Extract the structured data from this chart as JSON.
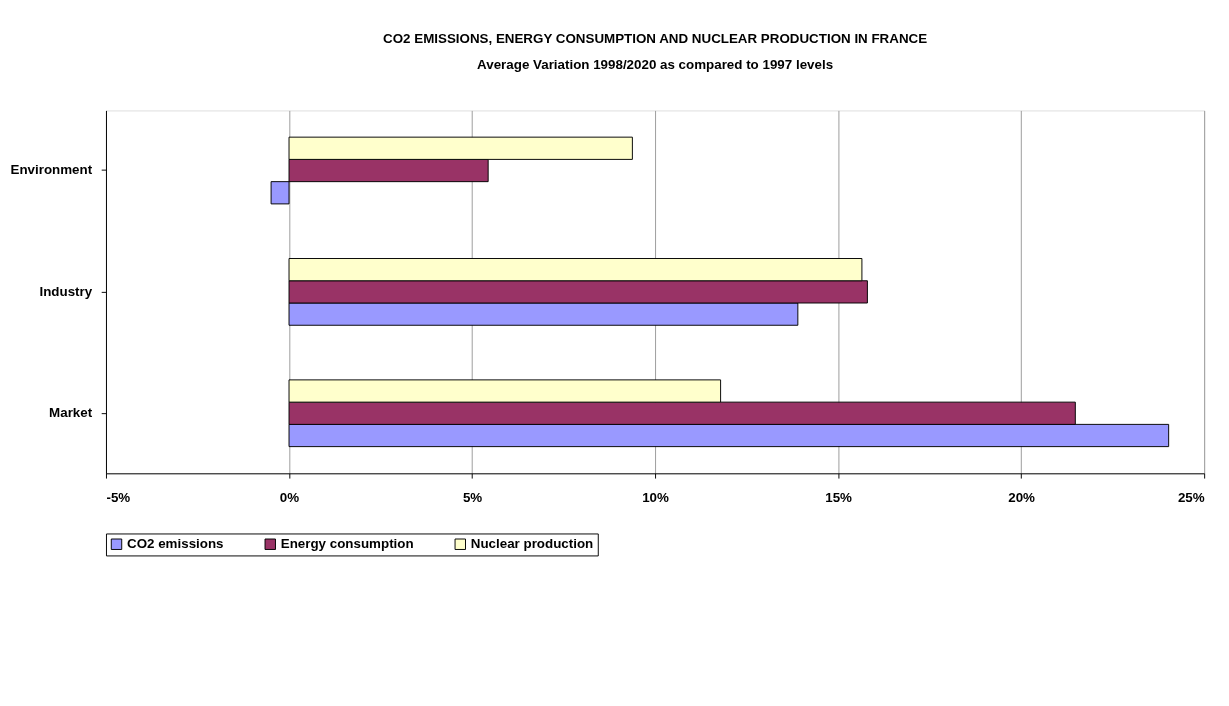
{
  "chart_data": {
    "type": "bar",
    "orientation": "horizontal",
    "title": "CO2 EMISSIONS, ENERGY CONSUMPTION AND NUCLEAR PRODUCTION IN FRANCE",
    "subtitle": "Average Variation 1998/2020 as compared to 1997 levels",
    "categories": [
      "Environment",
      "Industry",
      "Market"
    ],
    "series": [
      {
        "name": "CO2 emissions",
        "color": "#9999ff",
        "values": [
          -0.49,
          13.9,
          24.03
        ]
      },
      {
        "name": "Energy consumption",
        "color": "#993366",
        "values": [
          5.44,
          15.8,
          21.48
        ]
      },
      {
        "name": "Nuclear production",
        "color": "#ffffcc",
        "values": [
          9.38,
          15.65,
          11.79
        ]
      }
    ],
    "xlim": [
      -5,
      25
    ],
    "xticks": [
      {
        "value": -5,
        "label": "-5%"
      },
      {
        "value": 0,
        "label": "0%"
      },
      {
        "value": 5,
        "label": "5%"
      },
      {
        "value": 10,
        "label": "10%"
      },
      {
        "value": 15,
        "label": "15%"
      },
      {
        "value": 20,
        "label": "20%"
      },
      {
        "value": 25,
        "label": "25%"
      }
    ],
    "grid": "x",
    "legend": "bottom"
  }
}
